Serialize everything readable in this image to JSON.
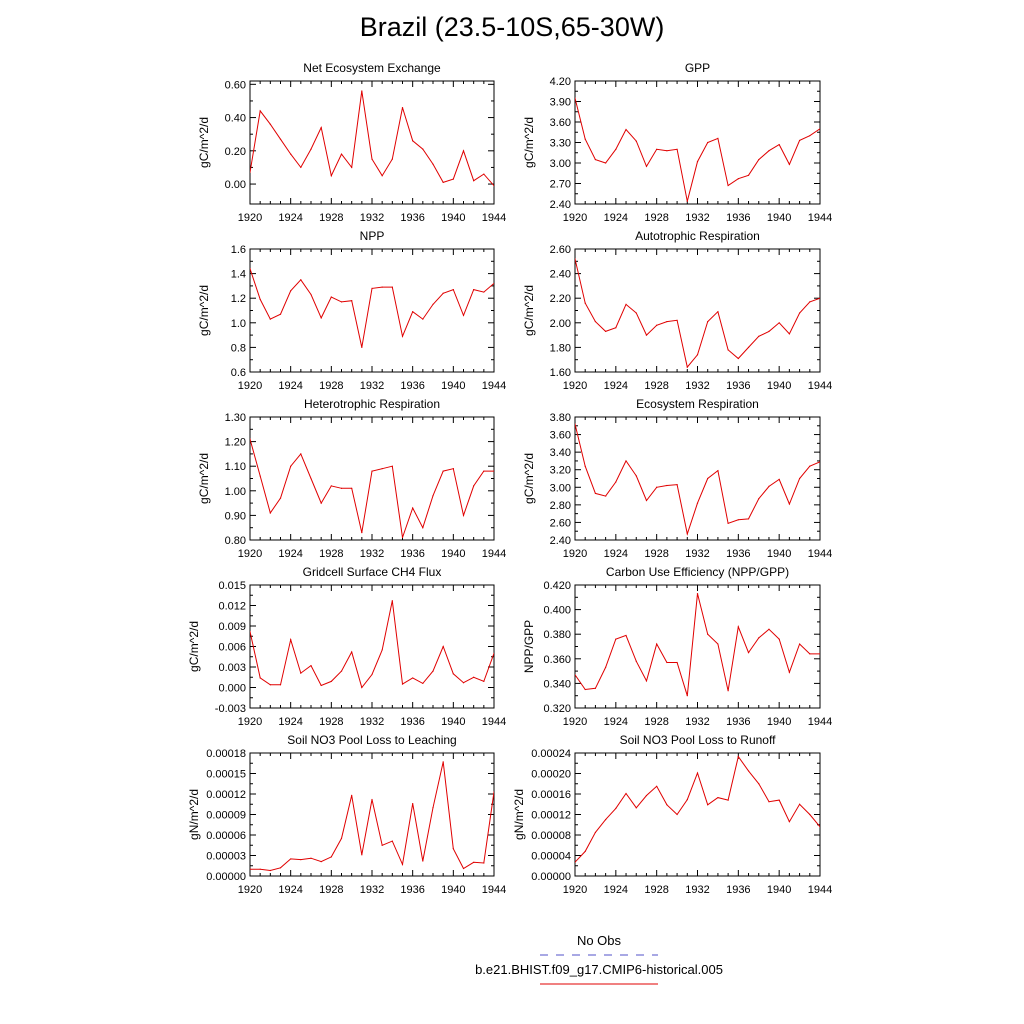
{
  "title": "Brazil (23.5-10S,65-30W)",
  "legend": {
    "obs_label": "No Obs",
    "obs_color": "#5050c8",
    "model_label": "b.e21.BHIST.f09_g17.CMIP6-historical.005",
    "model_color": "#e00000"
  },
  "chart_data": [
    {
      "type": "line",
      "title": "Net Ecosystem Exchange",
      "ylabel": "gC/m^2/d",
      "xlim": [
        1920,
        1944
      ],
      "ylim": [
        -0.12,
        0.62
      ],
      "yticks": [
        "0.00",
        "0.20",
        "0.40",
        "0.60"
      ],
      "xticks": [
        "1920",
        "1924",
        "1928",
        "1932",
        "1936",
        "1940",
        "1944"
      ],
      "x": [
        1920,
        1921,
        1922,
        1923,
        1924,
        1925,
        1926,
        1927,
        1928,
        1929,
        1930,
        1931,
        1932,
        1933,
        1934,
        1935,
        1936,
        1937,
        1938,
        1939,
        1940,
        1941,
        1942,
        1943,
        1944
      ],
      "series": [
        {
          "values": [
            0.07,
            0.44,
            0.36,
            0.27,
            0.18,
            0.1,
            0.21,
            0.34,
            0.05,
            0.18,
            0.1,
            0.56,
            0.15,
            0.05,
            0.15,
            0.46,
            0.26,
            0.21,
            0.12,
            0.01,
            0.03,
            0.2,
            0.02,
            0.06,
            -0.01
          ]
        }
      ]
    },
    {
      "type": "line",
      "title": "GPP",
      "ylabel": "gC/m^2/d",
      "xlim": [
        1920,
        1944
      ],
      "ylim": [
        2.4,
        4.2
      ],
      "yticks": [
        "2.40",
        "2.70",
        "3.00",
        "3.30",
        "3.60",
        "3.90",
        "4.20"
      ],
      "xticks": [
        "1920",
        "1924",
        "1928",
        "1932",
        "1936",
        "1940",
        "1944"
      ],
      "x": [
        1920,
        1921,
        1922,
        1923,
        1924,
        1925,
        1926,
        1927,
        1928,
        1929,
        1930,
        1931,
        1932,
        1933,
        1934,
        1935,
        1936,
        1937,
        1938,
        1939,
        1940,
        1941,
        1942,
        1943,
        1944
      ],
      "series": [
        {
          "values": [
            3.95,
            3.35,
            3.05,
            3.0,
            3.2,
            3.49,
            3.32,
            2.95,
            3.2,
            3.18,
            3.2,
            2.44,
            3.02,
            3.3,
            3.36,
            2.67,
            2.77,
            2.82,
            3.05,
            3.18,
            3.27,
            2.98,
            3.33,
            3.4,
            3.5
          ]
        }
      ]
    },
    {
      "type": "line",
      "title": "NPP",
      "ylabel": "gC/m^2/d",
      "xlim": [
        1920,
        1944
      ],
      "ylim": [
        0.6,
        1.6
      ],
      "yticks": [
        "0.6",
        "0.8",
        "1.0",
        "1.2",
        "1.4",
        "1.6"
      ],
      "xticks": [
        "1920",
        "1924",
        "1928",
        "1932",
        "1936",
        "1940",
        "1944"
      ],
      "x": [
        1920,
        1921,
        1922,
        1923,
        1924,
        1925,
        1926,
        1927,
        1928,
        1929,
        1930,
        1931,
        1932,
        1933,
        1934,
        1935,
        1936,
        1937,
        1938,
        1939,
        1940,
        1941,
        1942,
        1943,
        1944
      ],
      "series": [
        {
          "values": [
            1.44,
            1.19,
            1.03,
            1.07,
            1.26,
            1.35,
            1.23,
            1.04,
            1.21,
            1.17,
            1.18,
            0.8,
            1.28,
            1.29,
            1.29,
            0.89,
            1.09,
            1.03,
            1.15,
            1.24,
            1.27,
            1.06,
            1.27,
            1.25,
            1.32
          ]
        }
      ]
    },
    {
      "type": "line",
      "title": "Autotrophic Respiration",
      "ylabel": "gC/m^2/d",
      "xlim": [
        1920,
        1944
      ],
      "ylim": [
        1.6,
        2.6
      ],
      "yticks": [
        "1.60",
        "1.80",
        "2.00",
        "2.20",
        "2.40",
        "2.60"
      ],
      "xticks": [
        "1920",
        "1924",
        "1928",
        "1932",
        "1936",
        "1940",
        "1944"
      ],
      "x": [
        1920,
        1921,
        1922,
        1923,
        1924,
        1925,
        1926,
        1927,
        1928,
        1929,
        1930,
        1931,
        1932,
        1933,
        1934,
        1935,
        1936,
        1937,
        1938,
        1939,
        1940,
        1941,
        1942,
        1943,
        1944
      ],
      "series": [
        {
          "values": [
            2.52,
            2.16,
            2.01,
            1.93,
            1.96,
            2.15,
            2.08,
            1.9,
            1.98,
            2.01,
            2.02,
            1.64,
            1.74,
            2.01,
            2.09,
            1.78,
            1.71,
            1.8,
            1.89,
            1.93,
            2.0,
            1.91,
            2.08,
            2.17,
            2.2
          ]
        }
      ]
    },
    {
      "type": "line",
      "title": "Heterotrophic Respiration",
      "ylabel": "gC/m^2/d",
      "xlim": [
        1920,
        1944
      ],
      "ylim": [
        0.8,
        1.3
      ],
      "yticks": [
        "0.80",
        "0.90",
        "1.00",
        "1.10",
        "1.20",
        "1.30"
      ],
      "xticks": [
        "1920",
        "1924",
        "1928",
        "1932",
        "1936",
        "1940",
        "1944"
      ],
      "x": [
        1920,
        1921,
        1922,
        1923,
        1924,
        1925,
        1926,
        1927,
        1928,
        1929,
        1930,
        1931,
        1932,
        1933,
        1934,
        1935,
        1936,
        1937,
        1938,
        1939,
        1940,
        1941,
        1942,
        1943,
        1944
      ],
      "series": [
        {
          "values": [
            1.21,
            1.06,
            0.91,
            0.97,
            1.1,
            1.15,
            1.05,
            0.95,
            1.02,
            1.01,
            1.01,
            0.83,
            1.08,
            1.09,
            1.1,
            0.81,
            0.93,
            0.85,
            0.98,
            1.08,
            1.09,
            0.9,
            1.02,
            1.08,
            1.08
          ]
        }
      ]
    },
    {
      "type": "line",
      "title": "Ecosystem Respiration",
      "ylabel": "gC/m^2/d",
      "xlim": [
        1920,
        1944
      ],
      "ylim": [
        2.4,
        3.8
      ],
      "yticks": [
        "2.40",
        "2.60",
        "2.80",
        "3.00",
        "3.20",
        "3.40",
        "3.60",
        "3.80"
      ],
      "xticks": [
        "1920",
        "1924",
        "1928",
        "1932",
        "1936",
        "1940",
        "1944"
      ],
      "x": [
        1920,
        1921,
        1922,
        1923,
        1924,
        1925,
        1926,
        1927,
        1928,
        1929,
        1930,
        1931,
        1932,
        1933,
        1934,
        1935,
        1936,
        1937,
        1938,
        1939,
        1940,
        1941,
        1942,
        1943,
        1944
      ],
      "series": [
        {
          "values": [
            3.72,
            3.24,
            2.93,
            2.9,
            3.06,
            3.3,
            3.13,
            2.85,
            3.0,
            3.02,
            3.03,
            2.47,
            2.82,
            3.1,
            3.19,
            2.59,
            2.63,
            2.64,
            2.87,
            3.01,
            3.09,
            2.81,
            3.1,
            3.24,
            3.29
          ]
        }
      ]
    },
    {
      "type": "line",
      "title": "Gridcell Surface CH4 Flux",
      "ylabel": "gC/m^2/d",
      "xlim": [
        1920,
        1944
      ],
      "ylim": [
        -0.003,
        0.015
      ],
      "yticks": [
        "-0.003",
        "0.000",
        "0.003",
        "0.006",
        "0.009",
        "0.012",
        "0.015"
      ],
      "xticks": [
        "1920",
        "1924",
        "1928",
        "1932",
        "1936",
        "1940",
        "1944"
      ],
      "x": [
        1920,
        1921,
        1922,
        1923,
        1924,
        1925,
        1926,
        1927,
        1928,
        1929,
        1930,
        1931,
        1932,
        1933,
        1934,
        1935,
        1936,
        1937,
        1938,
        1939,
        1940,
        1941,
        1942,
        1943,
        1944
      ],
      "series": [
        {
          "values": [
            0.0082,
            0.0014,
            0.0004,
            0.0004,
            0.007,
            0.0021,
            0.0032,
            0.0003,
            0.0009,
            0.0024,
            0.0052,
            0.0,
            0.0019,
            0.0055,
            0.0127,
            0.0005,
            0.0014,
            0.0006,
            0.0024,
            0.006,
            0.002,
            0.0007,
            0.0015,
            0.0009,
            0.005
          ]
        }
      ]
    },
    {
      "type": "line",
      "title": "Carbon Use Efficiency (NPP/GPP)",
      "ylabel": "NPP/GPP",
      "xlim": [
        1920,
        1944
      ],
      "ylim": [
        0.32,
        0.42
      ],
      "yticks": [
        "0.320",
        "0.340",
        "0.360",
        "0.380",
        "0.400",
        "0.420"
      ],
      "xticks": [
        "1920",
        "1924",
        "1928",
        "1932",
        "1936",
        "1940",
        "1944"
      ],
      "x": [
        1920,
        1921,
        1922,
        1923,
        1924,
        1925,
        1926,
        1927,
        1928,
        1929,
        1930,
        1931,
        1932,
        1933,
        1934,
        1935,
        1936,
        1937,
        1938,
        1939,
        1940,
        1941,
        1942,
        1943,
        1944
      ],
      "series": [
        {
          "values": [
            0.347,
            0.335,
            0.336,
            0.353,
            0.376,
            0.379,
            0.358,
            0.342,
            0.372,
            0.357,
            0.357,
            0.33,
            0.413,
            0.38,
            0.372,
            0.334,
            0.386,
            0.365,
            0.377,
            0.384,
            0.376,
            0.349,
            0.372,
            0.364,
            0.364
          ]
        }
      ]
    },
    {
      "type": "line",
      "title": "Soil NO3 Pool Loss to Leaching",
      "ylabel": "gN/m^2/d",
      "xlim": [
        1920,
        1944
      ],
      "ylim": [
        0,
        0.00018
      ],
      "yticks": [
        "0.00000",
        "0.00003",
        "0.00006",
        "0.00009",
        "0.00012",
        "0.00015",
        "0.00018"
      ],
      "xticks": [
        "1920",
        "1924",
        "1928",
        "1932",
        "1936",
        "1940",
        "1944"
      ],
      "x": [
        1920,
        1921,
        1922,
        1923,
        1924,
        1925,
        1926,
        1927,
        1928,
        1929,
        1930,
        1931,
        1932,
        1933,
        1934,
        1935,
        1936,
        1937,
        1938,
        1939,
        1940,
        1941,
        1942,
        1943,
        1944
      ],
      "series": [
        {
          "values": [
            1e-05,
            1e-05,
            8e-06,
            1.2e-05,
            2.5e-05,
            2.4e-05,
            2.6e-05,
            2.1e-05,
            2.8e-05,
            5.5e-05,
            0.000118,
            3.1e-05,
            0.000112,
            4.5e-05,
            5.1e-05,
            1.7e-05,
            0.000106,
            2.2e-05,
            0.0001,
            0.000167,
            4e-05,
            1.1e-05,
            2e-05,
            1.9e-05,
            0.000123
          ]
        }
      ]
    },
    {
      "type": "line",
      "title": "Soil NO3 Pool Loss to Runoff",
      "ylabel": "gN/m^2/d",
      "xlim": [
        1920,
        1944
      ],
      "ylim": [
        0,
        0.00024
      ],
      "yticks": [
        "0.00000",
        "0.00004",
        "0.00008",
        "0.00012",
        "0.00016",
        "0.00020",
        "0.00024"
      ],
      "xticks": [
        "1920",
        "1924",
        "1928",
        "1932",
        "1936",
        "1940",
        "1944"
      ],
      "x": [
        1920,
        1921,
        1922,
        1923,
        1924,
        1925,
        1926,
        1927,
        1928,
        1929,
        1930,
        1931,
        1932,
        1933,
        1934,
        1935,
        1936,
        1937,
        1938,
        1939,
        1940,
        1941,
        1942,
        1943,
        1944
      ],
      "series": [
        {
          "values": [
            2.7e-05,
            4.8e-05,
            8.5e-05,
            0.00011,
            0.000132,
            0.000161,
            0.000133,
            0.000157,
            0.000175,
            0.000139,
            0.00012,
            0.000149,
            0.000201,
            0.000139,
            0.000153,
            0.000148,
            0.000233,
            0.000205,
            0.00018,
            0.000145,
            0.000148,
            0.000106,
            0.00014,
            0.00012,
            9.6e-05
          ]
        }
      ]
    }
  ]
}
